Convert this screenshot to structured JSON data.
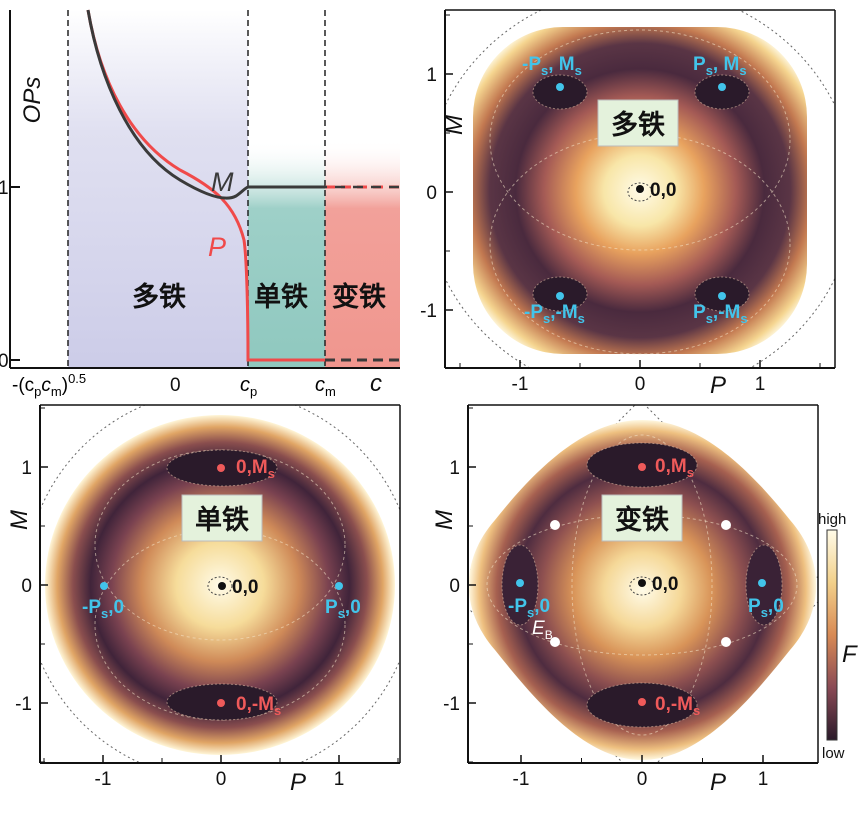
{
  "colors": {
    "curve_M": "#3a3a3a",
    "curve_P": "#f04a4a",
    "region_multi": "#dcdcef",
    "region_single": "#9ed0c8",
    "region_ferro": "#f2a19a",
    "label_cyan": "#42c4ea",
    "label_red": "#ef5a5a",
    "phase_box": "#e4f2dc",
    "F_low": "#2a1a2a",
    "F_high": "#fffbe8"
  },
  "panel_a": {
    "ylabel": "OPs",
    "yticks": [
      "0",
      "1"
    ],
    "xtick_labels": {
      "neg_prefix": "-(c",
      "neg_sub_p": "p",
      "neg_mid": "c",
      "neg_sub_m": "m",
      "neg_suffix": ")",
      "neg_sup": "0.5",
      "zero": "0",
      "cp_main": "c",
      "cp_sub": "p",
      "cm_main": "c",
      "cm_sub": "m",
      "c_axis": "c"
    },
    "curve_labels": {
      "M": "M",
      "P": "P"
    },
    "regions": [
      "多铁",
      "单铁",
      "变铁"
    ]
  },
  "chart_data": [
    {
      "type": "line",
      "panel": "a",
      "xlabel": "c",
      "ylabel": "OPs",
      "x_marks": [
        "-(cpcm)^0.5",
        "0",
        "cp",
        "cm"
      ],
      "ylim": [
        0,
        1.75
      ],
      "series": [
        {
          "name": "M",
          "points": [
            [
              -1.0,
              1.75
            ],
            [
              -0.85,
              1.55
            ],
            [
              -0.7,
              1.38
            ],
            [
              -0.5,
              1.22
            ],
            [
              -0.3,
              1.1
            ],
            [
              -0.1,
              1.02
            ],
            [
              0.15,
              0.97
            ],
            [
              0.35,
              0.94
            ],
            [
              0.5,
              0.94
            ],
            [
              0.65,
              0.97
            ],
            [
              0.75,
              1.0
            ],
            [
              1.3,
              1.0
            ],
            [
              1.9,
              1.0
            ]
          ]
        },
        {
          "name": "P",
          "points": [
            [
              -0.5,
              1.22
            ],
            [
              -0.3,
              1.1
            ],
            [
              -0.05,
              1.0
            ],
            [
              0.2,
              0.93
            ],
            [
              0.4,
              0.84
            ],
            [
              0.55,
              0.72
            ],
            [
              0.65,
              0.58
            ],
            [
              0.72,
              0.38
            ],
            [
              0.75,
              0.0
            ],
            [
              1.9,
              0.0
            ]
          ]
        }
      ],
      "regions": [
        {
          "label": "多铁",
          "x": [
            -1.3,
            0.75
          ]
        },
        {
          "label": "单铁",
          "x": [
            0.75,
            1.3
          ]
        },
        {
          "label": "变铁",
          "x": [
            1.3,
            1.9
          ]
        }
      ]
    },
    {
      "type": "heatmap",
      "panel": "b",
      "phase": "多铁",
      "xlabel": "P",
      "ylabel": "M",
      "xticks": [
        -1,
        0,
        1
      ],
      "yticks": [
        -1,
        0,
        1
      ],
      "xlim": [
        -1.5,
        1.5
      ],
      "ylim": [
        -1.5,
        1.5
      ],
      "minima": [
        [
          -0.7,
          0.9
        ],
        [
          0.7,
          0.9
        ],
        [
          -0.7,
          -0.9
        ],
        [
          0.7,
          -0.9
        ]
      ],
      "center": [
        0,
        0
      ],
      "point_labels": [
        {
          "text": "-Ps, Ms",
          "x": -0.7,
          "y": 0.9,
          "color": "cyan"
        },
        {
          "text": "Ps, Ms",
          "x": 0.7,
          "y": 0.9,
          "color": "cyan"
        },
        {
          "text": "-Ps,-Ms",
          "x": -0.7,
          "y": -0.9,
          "color": "cyan"
        },
        {
          "text": "Ps,-Ms",
          "x": 0.7,
          "y": -0.9,
          "color": "cyan"
        },
        {
          "text": "0,0",
          "x": 0,
          "y": 0,
          "color": "black"
        }
      ]
    },
    {
      "type": "heatmap",
      "panel": "c",
      "phase": "单铁",
      "xlabel": "P",
      "ylabel": "M",
      "xticks": [
        -1,
        0,
        1
      ],
      "yticks": [
        -1,
        0,
        1
      ],
      "xlim": [
        -1.5,
        1.5
      ],
      "ylim": [
        -1.5,
        1.5
      ],
      "minima": [
        [
          0,
          1
        ],
        [
          0,
          -1
        ]
      ],
      "saddles": [
        [
          -1,
          0
        ],
        [
          1,
          0
        ]
      ],
      "center": [
        0,
        0
      ],
      "point_labels": [
        {
          "text": "0,Ms",
          "x": 0,
          "y": 1,
          "color": "red"
        },
        {
          "text": "0,-Ms",
          "x": 0,
          "y": -1,
          "color": "red"
        },
        {
          "text": "-Ps,0",
          "x": -1,
          "y": 0,
          "color": "cyan"
        },
        {
          "text": "Ps,0",
          "x": 1,
          "y": 0,
          "color": "cyan"
        },
        {
          "text": "0,0",
          "x": 0,
          "y": 0,
          "color": "black"
        }
      ]
    },
    {
      "type": "heatmap",
      "panel": "d",
      "phase": "变铁",
      "xlabel": "P",
      "ylabel": "M",
      "xticks": [
        -1,
        0,
        1
      ],
      "yticks": [
        -1,
        0,
        1
      ],
      "xlim": [
        -1.5,
        1.5
      ],
      "ylim": [
        -1.5,
        1.5
      ],
      "minima": [
        [
          0,
          1
        ],
        [
          0,
          -1
        ],
        [
          -1,
          0
        ],
        [
          1,
          0
        ]
      ],
      "barrier_points": [
        [
          -0.75,
          0.5
        ],
        [
          0.75,
          0.5
        ],
        [
          -0.75,
          -0.5
        ],
        [
          0.75,
          -0.5
        ]
      ],
      "barrier_label": "EB",
      "center": [
        0,
        0
      ],
      "point_labels": [
        {
          "text": "0,Ms",
          "x": 0,
          "y": 1,
          "color": "red"
        },
        {
          "text": "0,-Ms",
          "x": 0,
          "y": -1,
          "color": "red"
        },
        {
          "text": "-Ps,0",
          "x": -1,
          "y": 0,
          "color": "cyan"
        },
        {
          "text": "Ps,0",
          "x": 1,
          "y": 0,
          "color": "cyan"
        },
        {
          "text": "0,0",
          "x": 0,
          "y": 0,
          "color": "black"
        }
      ],
      "colorbar": {
        "label": "F",
        "high": "high",
        "low": "low"
      }
    }
  ],
  "panel_texts": {
    "b_phase": "多铁",
    "c_phase": "单铁",
    "d_phase": "变铁",
    "tick_m1": "-1",
    "tick_0": "0",
    "tick_1": "1",
    "axis_P": "P",
    "axis_M": "M",
    "origin": "0,0",
    "EB_main": "E",
    "EB_sub": "B",
    "cbar_high": "high",
    "cbar_low": "low",
    "cbar_F": "F"
  }
}
